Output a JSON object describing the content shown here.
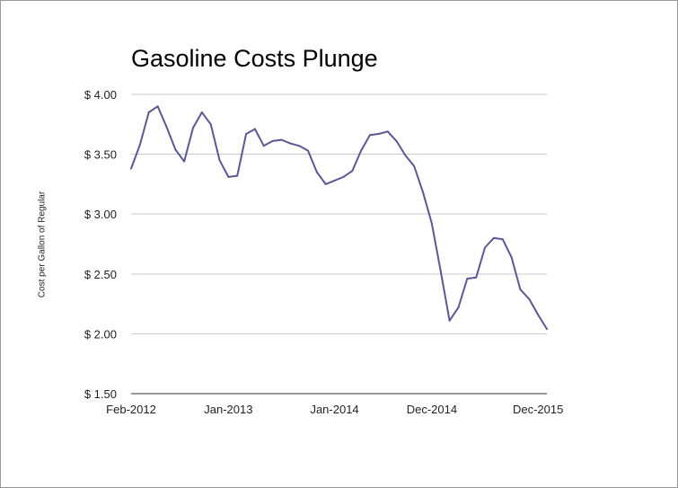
{
  "chart_data": {
    "type": "line",
    "title": "Gasoline Costs Plunge",
    "xlabel": "",
    "ylabel": "Cost per Gallon of Regular",
    "ylim": [
      1.5,
      4.0
    ],
    "y_ticks": [
      4.0,
      3.5,
      3.0,
      2.5,
      2.0,
      1.5
    ],
    "y_tick_labels": [
      "$ 4.00",
      "$ 3.50",
      "$ 3.00",
      "$ 2.50",
      "$ 2.00",
      "$ 1.50"
    ],
    "x_ticks": [
      {
        "index": 0,
        "label": "Feb-2012"
      },
      {
        "index": 11,
        "label": "Jan-2013"
      },
      {
        "index": 23,
        "label": "Jan-2014"
      },
      {
        "index": 34,
        "label": "Dec-2014"
      },
      {
        "index": 46,
        "label": "Dec-2015"
      }
    ],
    "grid": true,
    "legend": "none",
    "line_color": "#5b5894",
    "series": [
      {
        "values": [
          3.38,
          3.58,
          3.85,
          3.9,
          3.73,
          3.54,
          3.44,
          3.72,
          3.85,
          3.75,
          3.45,
          3.31,
          3.32,
          3.67,
          3.71,
          3.57,
          3.61,
          3.62,
          3.59,
          3.57,
          3.53,
          3.35,
          3.25,
          3.28,
          3.31,
          3.36,
          3.53,
          3.66,
          3.67,
          3.69,
          3.61,
          3.49,
          3.4,
          3.18,
          2.92,
          2.52,
          2.11,
          2.22,
          2.46,
          2.47,
          2.72,
          2.8,
          2.79,
          2.64,
          2.37,
          2.29,
          2.16,
          2.04
        ]
      }
    ]
  }
}
